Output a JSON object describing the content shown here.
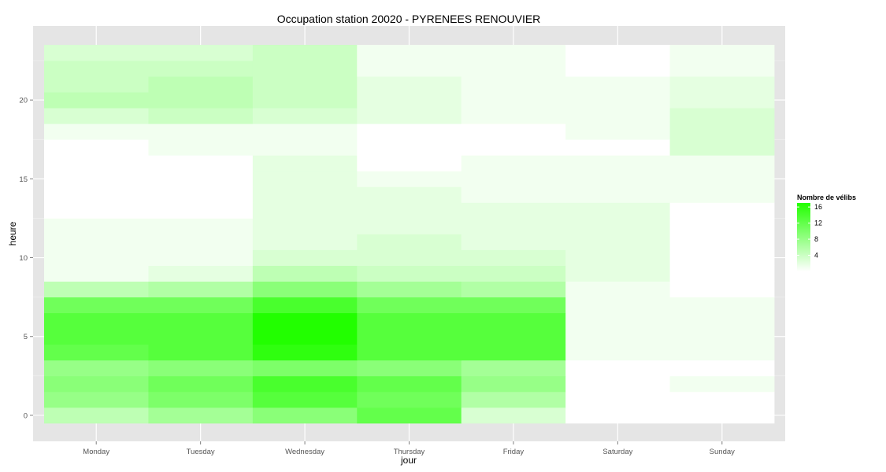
{
  "chart_data": {
    "type": "heatmap",
    "title": "Occupation station 20020 - PYRENEES RENOUVIER",
    "xlabel": "jour",
    "ylabel": "heure",
    "categories": [
      "Monday",
      "Tuesday",
      "Wednesday",
      "Thursday",
      "Friday",
      "Saturday",
      "Sunday"
    ],
    "y": [
      0,
      1,
      2,
      3,
      4,
      5,
      6,
      7,
      8,
      9,
      10,
      11,
      12,
      13,
      14,
      15,
      16,
      17,
      18,
      19,
      20,
      21,
      22,
      23
    ],
    "y_ticks": [
      0,
      5,
      10,
      15,
      20
    ],
    "ylim": [
      -0.5,
      23.5
    ],
    "values": [
      [
        5,
        7,
        9,
        12,
        3,
        0,
        0
      ],
      [
        8,
        10,
        13,
        11,
        6,
        0,
        0
      ],
      [
        9,
        11,
        14,
        12,
        8,
        0,
        1
      ],
      [
        8,
        9,
        10,
        9,
        7,
        0,
        0
      ],
      [
        12,
        13,
        16,
        13,
        13,
        1,
        1
      ],
      [
        13,
        13,
        17,
        13,
        13,
        1,
        1
      ],
      [
        13,
        13,
        17,
        13,
        13,
        1,
        1
      ],
      [
        11,
        11,
        14,
        11,
        11,
        1,
        1
      ],
      [
        5,
        6,
        9,
        7,
        6,
        1,
        0
      ],
      [
        1,
        2,
        5,
        4,
        4,
        2,
        0
      ],
      [
        1,
        1,
        3,
        3,
        3,
        2,
        0
      ],
      [
        1,
        1,
        2,
        3,
        2,
        2,
        0
      ],
      [
        1,
        1,
        2,
        2,
        2,
        2,
        0
      ],
      [
        0,
        0,
        2,
        2,
        2,
        2,
        0
      ],
      [
        0,
        0,
        2,
        2,
        1,
        1,
        1
      ],
      [
        0,
        0,
        2,
        1,
        1,
        1,
        1
      ],
      [
        0,
        0,
        2,
        0,
        1,
        1,
        1
      ],
      [
        0,
        1,
        1,
        0,
        0,
        0,
        3
      ],
      [
        1,
        1,
        1,
        0,
        0,
        1,
        3
      ],
      [
        3,
        4,
        3,
        2,
        1,
        1,
        3
      ],
      [
        5,
        5,
        4,
        2,
        1,
        1,
        2
      ],
      [
        4,
        5,
        4,
        2,
        1,
        1,
        2
      ],
      [
        4,
        4,
        4,
        1,
        1,
        0,
        1
      ],
      [
        3,
        3,
        4,
        1,
        1,
        0,
        1
      ]
    ],
    "legend": {
      "title": "Nombre de vélibs",
      "ticks": [
        4,
        8,
        12,
        16
      ],
      "range": [
        0,
        17
      ],
      "placement": "right",
      "low_color": "#ffffff",
      "high_color": "#22ff00"
    },
    "panel_color": "#e5e5e5",
    "grid": true
  }
}
